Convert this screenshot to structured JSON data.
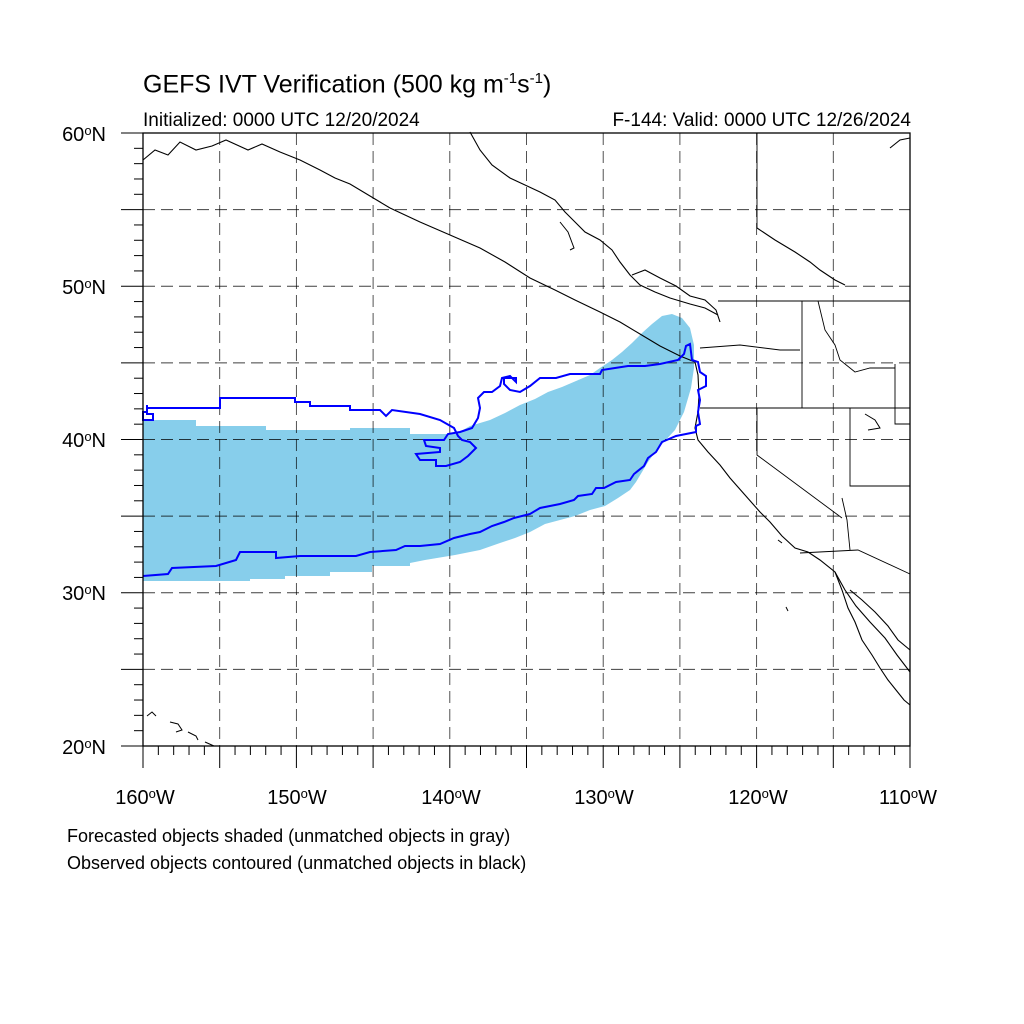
{
  "title": {
    "prefix": "GEFS IVT Verification (500 kg m",
    "exp1": "-1",
    "mid": "s",
    "exp2": "-1",
    "suffix": ")"
  },
  "initialized": "Initialized: 0000 UTC 12/20/2024",
  "valid": "F-144: Valid: 0000 UTC 12/26/2024",
  "lat_ticks": [
    {
      "value": 60,
      "label": "60",
      "suffix": "N"
    },
    {
      "value": 50,
      "label": "50",
      "suffix": "N"
    },
    {
      "value": 40,
      "label": "40",
      "suffix": "N"
    },
    {
      "value": 30,
      "label": "30",
      "suffix": "N"
    },
    {
      "value": 20,
      "label": "20",
      "suffix": "N"
    }
  ],
  "lon_ticks": [
    {
      "value": -160,
      "label": "160",
      "suffix": "W"
    },
    {
      "value": -150,
      "label": "150",
      "suffix": "W"
    },
    {
      "value": -140,
      "label": "140",
      "suffix": "W"
    },
    {
      "value": -130,
      "label": "130",
      "suffix": "W"
    },
    {
      "value": -120,
      "label": "120",
      "suffix": "W"
    },
    {
      "value": -110,
      "label": "110",
      "suffix": "W"
    }
  ],
  "captions": {
    "forecast": "Forecasted objects shaded (unmatched objects in gray)",
    "observed": "Observed objects contoured (unmatched objects in black)"
  },
  "map": {
    "lon_range": [
      -160,
      -110
    ],
    "lat_range": [
      20,
      60
    ],
    "gridline_interval_deg": 5,
    "forecast_fill_color": "#87ceeb",
    "observed_contour_color": "#0000ff",
    "coast_color": "#000000"
  }
}
